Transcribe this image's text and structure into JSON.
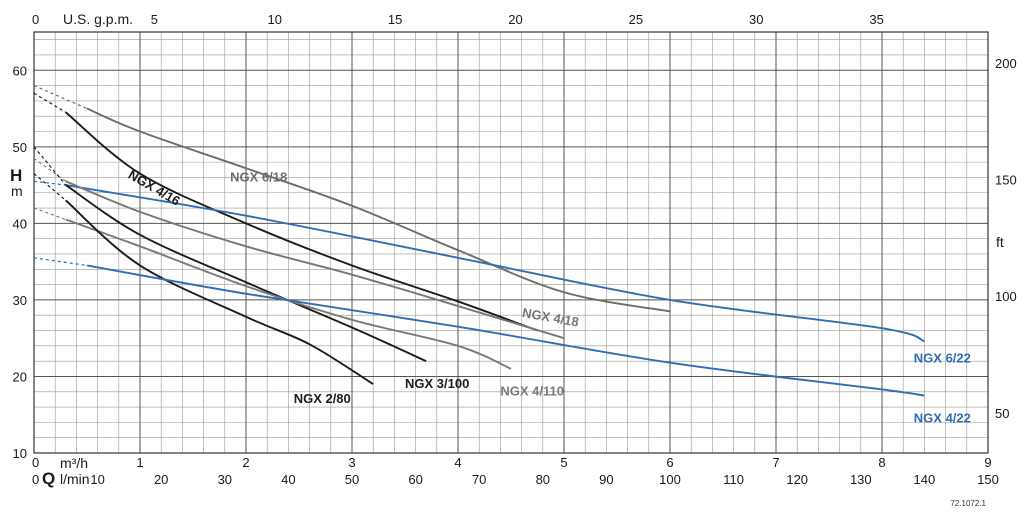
{
  "chart_data": {
    "type": "line",
    "title": "",
    "axes": {
      "q_m3h": {
        "label": "m³/h",
        "range": [
          0,
          9
        ],
        "ticks": [
          0,
          1,
          2,
          3,
          4,
          5,
          6,
          7,
          8,
          9
        ]
      },
      "q_lmin": {
        "label": "l/min",
        "range": [
          0,
          150
        ],
        "ticks": [
          0,
          10,
          20,
          30,
          40,
          50,
          60,
          70,
          80,
          90,
          100,
          110,
          120,
          130,
          140,
          150
        ]
      },
      "q_usgpm": {
        "label": "U.S. g.p.m.",
        "range": [
          0,
          39.63
        ],
        "ticks": [
          0,
          5,
          10,
          15,
          20,
          25,
          30,
          35
        ]
      },
      "h_m": {
        "label": "m",
        "range": [
          10,
          65
        ],
        "ticks": [
          10,
          20,
          30,
          40,
          50,
          60
        ]
      },
      "h_ft": {
        "label": "ft",
        "range": [
          32.8,
          213.3
        ],
        "ticks": [
          50,
          100,
          150,
          200
        ]
      }
    },
    "q_symbol": "Q",
    "h_symbol": "H",
    "grid": true,
    "x_unit": "m³/h",
    "y_unit": "m",
    "series": [
      {
        "name": "NGX 6/18",
        "color": "#6d6d6d",
        "dashed": [
          [
            0,
            58
          ],
          [
            0.5,
            55
          ]
        ],
        "points": [
          [
            0.5,
            55
          ],
          [
            1,
            52
          ],
          [
            2,
            47.2
          ],
          [
            3,
            42.3
          ],
          [
            4,
            36.5
          ],
          [
            5,
            31
          ],
          [
            6,
            28.5
          ]
        ],
        "label_pos": [
          1.85,
          45.5
        ]
      },
      {
        "name": "NGX 4/16",
        "color": "#1c1c1c",
        "dashed": [
          [
            0,
            57
          ],
          [
            0.3,
            54.5
          ]
        ],
        "points": [
          [
            0.3,
            54.5
          ],
          [
            1,
            46.5
          ],
          [
            2,
            40
          ],
          [
            3,
            34.5
          ],
          [
            4,
            29.8
          ],
          [
            4.75,
            26
          ]
        ],
        "label_pos": [
          0.88,
          46
        ]
      },
      {
        "name": "NGX 6/22",
        "color": "#2e6eb3",
        "dashed": [
          [
            0,
            45.5
          ],
          [
            0.3,
            45
          ]
        ],
        "points": [
          [
            0.3,
            45
          ],
          [
            2,
            41
          ],
          [
            4,
            35.5
          ],
          [
            6,
            30
          ],
          [
            8,
            26.3
          ],
          [
            8.4,
            24.6
          ]
        ],
        "label_pos": [
          8.3,
          21.8
        ]
      },
      {
        "name": "NGX 4/18",
        "color": "#777777",
        "dashed": [
          [
            0,
            48.5
          ],
          [
            0.3,
            45.5
          ]
        ],
        "points": [
          [
            0.3,
            45.5
          ],
          [
            1,
            41.5
          ],
          [
            2,
            37
          ],
          [
            3,
            33.3
          ],
          [
            4,
            29.2
          ],
          [
            5,
            25
          ]
        ],
        "label_pos": [
          4.6,
          27.8
        ]
      },
      {
        "name": "NGX 3/100",
        "color": "#1c1c1c",
        "dashed": [
          [
            0,
            50
          ],
          [
            0.3,
            45
          ]
        ],
        "points": [
          [
            0.3,
            45
          ],
          [
            1,
            38.5
          ],
          [
            2,
            32.3
          ],
          [
            3,
            26.4
          ],
          [
            3.7,
            22
          ]
        ],
        "label_pos": [
          3.5,
          18.5
        ]
      },
      {
        "name": "NGX 4/110",
        "color": "#7a7a7a",
        "dashed": [
          [
            0,
            42
          ],
          [
            0.3,
            40.5
          ]
        ],
        "points": [
          [
            0.3,
            40.5
          ],
          [
            1,
            37
          ],
          [
            2,
            31.8
          ],
          [
            3,
            27.4
          ],
          [
            4,
            24
          ],
          [
            4.5,
            21
          ]
        ],
        "label_pos": [
          4.4,
          17.5
        ]
      },
      {
        "name": "NGX 2/80",
        "color": "#1c1c1c",
        "dashed": [
          [
            0,
            46.5
          ],
          [
            0.3,
            43
          ]
        ],
        "points": [
          [
            0.3,
            43
          ],
          [
            1,
            34.5
          ],
          [
            2,
            27.8
          ],
          [
            2.6,
            24.2
          ],
          [
            3.2,
            19
          ]
        ],
        "label_pos": [
          2.45,
          16.5
        ]
      },
      {
        "name": "NGX 4/22",
        "color": "#2e6eb3",
        "dashed": [
          [
            0,
            35.5
          ],
          [
            0.5,
            34.5
          ]
        ],
        "points": [
          [
            0.5,
            34.5
          ],
          [
            2,
            30.8
          ],
          [
            4,
            26.5
          ],
          [
            6,
            21.8
          ],
          [
            8,
            18.3
          ],
          [
            8.4,
            17.5
          ]
        ],
        "label_pos": [
          8.3,
          14
        ]
      }
    ]
  },
  "footer_code": "72.1072.1"
}
